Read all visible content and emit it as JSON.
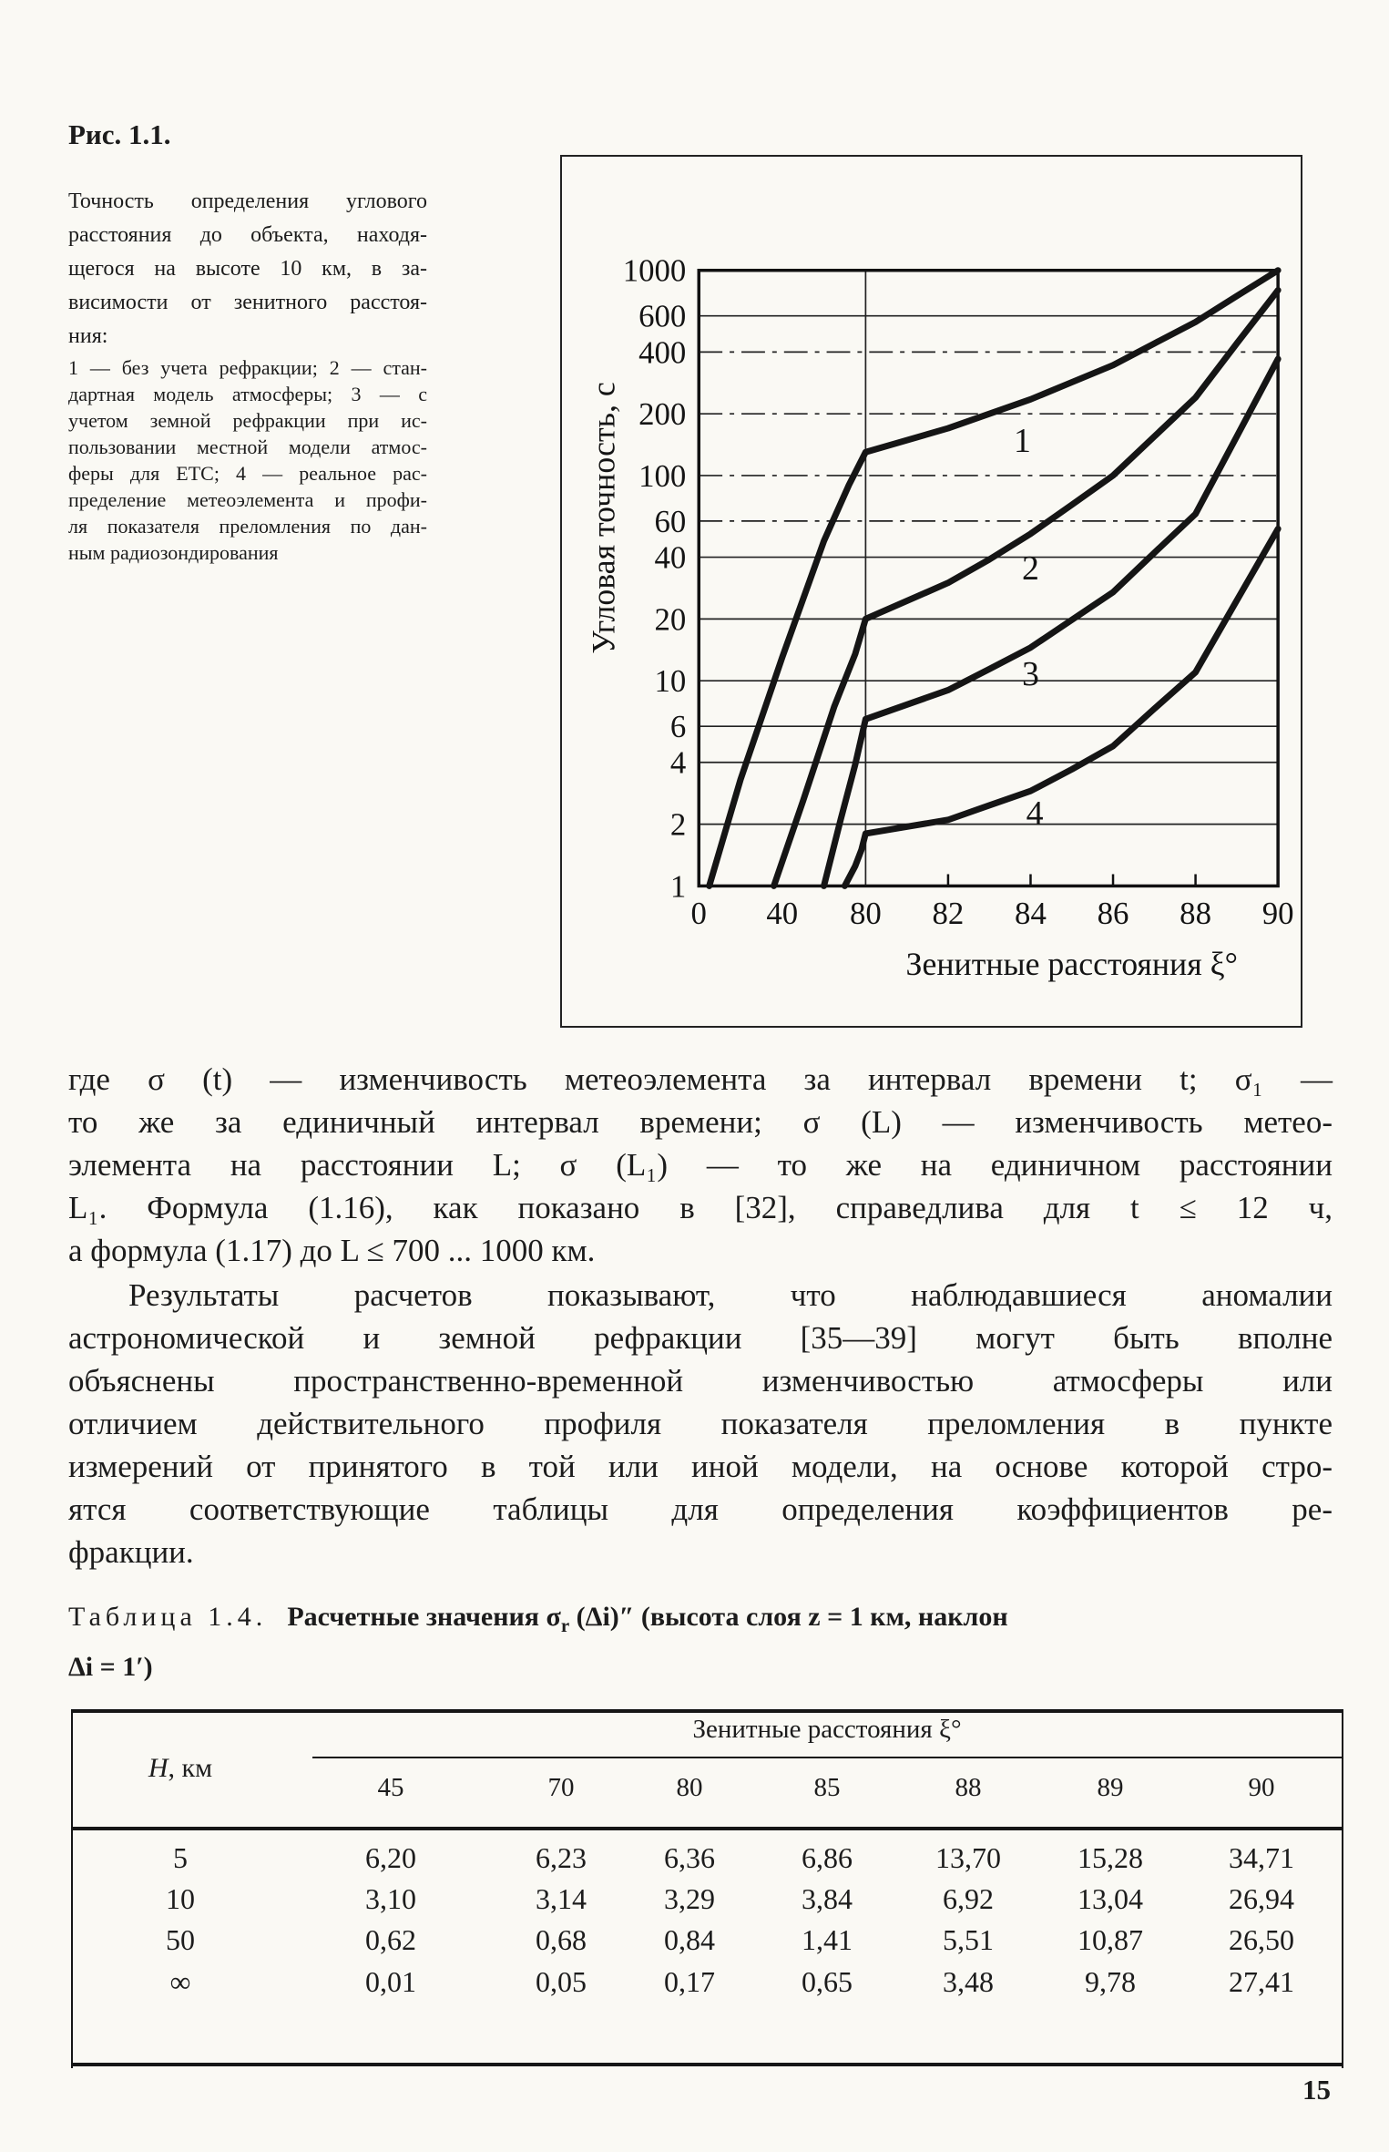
{
  "figure": {
    "label": "Рис. 1.1.",
    "caption_lines": [
      "Точность определения углового",
      "расстояния до объекта, находя-",
      "щегося на высоте 10 км, в за-",
      "висимости от зенитного расстоя-",
      "ния:"
    ],
    "legend_lines": [
      "1 — без учета рефракции; 2 — стан-",
      "дартная модель атмосферы; 3 — с",
      "учетом земной рефракции при ис-",
      "пользовании местной модели атмос-",
      "феры для ЕТС; 4 — реальное рас-",
      "пределение метеоэлемента и профи-",
      "ля показателя преломления по дан-",
      "ным радиозондирования"
    ]
  },
  "chart_data": {
    "type": "line",
    "title": "",
    "xlabel": "Зенитные расстояния ξ°",
    "ylabel": "Угловая точность, с",
    "y_scale": "log",
    "ylim": [
      1,
      1000
    ],
    "y_ticks": [
      1,
      2,
      4,
      6,
      10,
      20,
      40,
      60,
      100,
      200,
      400,
      600,
      1000
    ],
    "x_ticks": [
      0,
      40,
      80,
      82,
      84,
      86,
      88,
      90
    ],
    "x_break": {
      "value": 80,
      "fraction": 0.288
    },
    "dash_gridlines": [
      60,
      100,
      200,
      400
    ],
    "grid": true,
    "legend_position": "none",
    "series": [
      {
        "name": "1",
        "label": "1",
        "label_at": [
          83.8,
          150
        ],
        "points": [
          [
            5,
            1
          ],
          [
            20,
            3.3
          ],
          [
            40,
            13
          ],
          [
            60,
            48
          ],
          [
            72,
            90
          ],
          [
            80,
            130
          ],
          [
            82,
            170
          ],
          [
            83,
            200
          ],
          [
            84,
            235
          ],
          [
            85,
            285
          ],
          [
            86,
            345
          ],
          [
            87,
            440
          ],
          [
            88,
            560
          ],
          [
            89,
            750
          ],
          [
            90,
            1000
          ]
        ]
      },
      {
        "name": "2",
        "label": "2",
        "label_at": [
          84,
          36
        ],
        "points": [
          [
            36,
            1
          ],
          [
            50,
            2.6
          ],
          [
            65,
            7.5
          ],
          [
            75,
            13.5
          ],
          [
            80,
            20
          ],
          [
            82,
            30
          ],
          [
            83,
            39
          ],
          [
            84,
            52
          ],
          [
            85,
            72
          ],
          [
            86,
            100
          ],
          [
            87,
            155
          ],
          [
            88,
            240
          ],
          [
            89,
            440
          ],
          [
            90,
            800
          ]
        ]
      },
      {
        "name": "3",
        "label": "3",
        "label_at": [
          84,
          11
        ],
        "points": [
          [
            60,
            1
          ],
          [
            68,
            2.1
          ],
          [
            75,
            3.9
          ],
          [
            80,
            6.5
          ],
          [
            82,
            9
          ],
          [
            83,
            11.4
          ],
          [
            84,
            14.5
          ],
          [
            85,
            19.8
          ],
          [
            86,
            27
          ],
          [
            87,
            42
          ],
          [
            88,
            65
          ],
          [
            89,
            155
          ],
          [
            90,
            370
          ]
        ]
      },
      {
        "name": "4",
        "label": "4",
        "label_at": [
          84.1,
          2.3
        ],
        "points": [
          [
            70,
            1
          ],
          [
            75,
            1.25
          ],
          [
            78,
            1.5
          ],
          [
            80,
            1.8
          ],
          [
            82,
            2.1
          ],
          [
            83,
            2.47
          ],
          [
            84,
            2.9
          ],
          [
            85,
            3.7
          ],
          [
            86,
            4.8
          ],
          [
            87,
            7.3
          ],
          [
            88,
            11
          ],
          [
            89,
            24.6
          ],
          [
            90,
            55
          ]
        ]
      }
    ]
  },
  "paragraphs": [
    {
      "lines": [
        "где σ (t) — изменчивость метеоэлемента за интервал времени t; σ₁ —",
        "то же за единичный интервал времени; σ (L) — изменчивость метео-",
        "элемента на расстоянии L; σ (L₁) — то же на единичном расстоянии",
        "L₁. Формула (1.16), как показано в [32], справедлива для t ≤ 12 ч,",
        "а формула (1.17) до L ≤ 700 ... 1000 км."
      ]
    },
    {
      "lines": [
        "Результаты расчетов показывают, что наблюдавшиеся аномалии",
        "астрономической и земной рефракции [35—39] могут быть вполне",
        "объяснены пространственно-временной изменчивостью атмосферы или",
        "отличием действительного профиля показателя преломления в пункте",
        "измерений от принятого в той или иной модели, на основе которой стро-",
        "ятся соответствующие таблицы для определения коэффициентов ре-",
        "фракции."
      ]
    }
  ],
  "table": {
    "title": {
      "label": "Таблица 1.4.",
      "bold_pre": "Расчетные значения σ",
      "sub": "r",
      "bold_post": " (Δi)″ (высота слоя z = 1 км, наклон",
      "line2": "Δi = 1′)"
    },
    "row_header_h": "H",
    "row_header_unit": ", км",
    "col_group": "Зенитные расстояния ξ°",
    "columns": [
      "45",
      "70",
      "80",
      "85",
      "88",
      "89",
      "90"
    ],
    "rows": [
      {
        "h": "5",
        "values": [
          "6,20",
          "6,23",
          "6,36",
          "6,86",
          "13,70",
          "15,28",
          "34,71"
        ]
      },
      {
        "h": "10",
        "values": [
          "3,10",
          "3,14",
          "3,29",
          "3,84",
          "6,92",
          "13,04",
          "26,94"
        ]
      },
      {
        "h": "50",
        "values": [
          "0,62",
          "0,68",
          "0,84",
          "1,41",
          "5,51",
          "10,87",
          "26,50"
        ]
      },
      {
        "h": "∞",
        "values": [
          "0,01",
          "0,05",
          "0,17",
          "0,65",
          "3,48",
          "9,78",
          "27,41"
        ]
      }
    ]
  },
  "page_number": "15"
}
